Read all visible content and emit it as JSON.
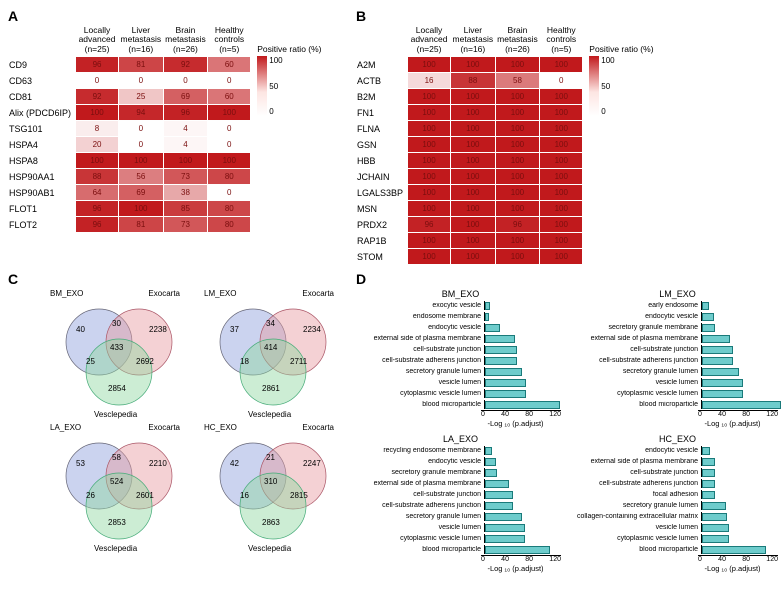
{
  "panels": {
    "A": "A",
    "B": "B",
    "C": "C",
    "D": "D"
  },
  "heatmap_common": {
    "columns": [
      {
        "line1": "Locally",
        "line2": "advanced",
        "line3": "(n=25)"
      },
      {
        "line1": "Liver",
        "line2": "metastasis",
        "line3": "(n=16)"
      },
      {
        "line1": "Brain",
        "line2": "metastasis",
        "line3": "(n=26)"
      },
      {
        "line1": "Healthy",
        "line2": "controls",
        "line3": "(n=5)"
      }
    ],
    "legend_title": "Positive ratio (%)",
    "legend_ticks": [
      "100",
      "50",
      "0"
    ],
    "color_min": "#ffffff",
    "color_max": "#c1191c"
  },
  "heatmapA": {
    "rows": [
      "CD9",
      "CD63",
      "CD81",
      "Alix (PDCD6IP)",
      "TSG101",
      "HSPA4",
      "HSPA8",
      "HSP90AA1",
      "HSP90AB1",
      "FLOT1",
      "FLOT2"
    ],
    "values": [
      [
        96,
        81,
        92,
        60
      ],
      [
        0,
        0,
        0,
        0
      ],
      [
        92,
        25,
        69,
        60
      ],
      [
        100,
        94,
        96,
        100
      ],
      [
        8,
        0,
        4,
        0
      ],
      [
        20,
        0,
        4,
        0
      ],
      [
        100,
        100,
        100,
        100
      ],
      [
        88,
        56,
        73,
        80
      ],
      [
        64,
        69,
        38,
        0
      ],
      [
        96,
        100,
        85,
        80
      ],
      [
        96,
        81,
        73,
        80
      ]
    ]
  },
  "heatmapB": {
    "rows": [
      "A2M",
      "ACTB",
      "B2M",
      "FN1",
      "FLNA",
      "GSN",
      "HBB",
      "JCHAIN",
      "LGALS3BP",
      "MSN",
      "PRDX2",
      "RAP1B",
      "STOM"
    ],
    "values": [
      [
        100,
        100,
        100,
        100
      ],
      [
        16,
        88,
        58,
        0
      ],
      [
        100,
        100,
        100,
        100
      ],
      [
        100,
        100,
        100,
        100
      ],
      [
        100,
        100,
        100,
        100
      ],
      [
        100,
        100,
        100,
        100
      ],
      [
        100,
        100,
        100,
        100
      ],
      [
        100,
        100,
        100,
        100
      ],
      [
        100,
        100,
        100,
        100
      ],
      [
        100,
        100,
        100,
        100
      ],
      [
        96,
        100,
        96,
        100
      ],
      [
        100,
        100,
        100,
        100
      ],
      [
        100,
        100,
        100,
        100
      ]
    ]
  },
  "venn_common": {
    "set_labels": [
      "",
      "Exocarta",
      "Vesclepedia"
    ],
    "circle_colors": {
      "A": "#8b9edc",
      "B": "#e79aa0",
      "C": "#8fd6a0"
    },
    "fill_opacity": 0.45
  },
  "venns": [
    {
      "title": "BM_EXO",
      "onlyA": 40,
      "onlyB": 2238,
      "onlyC": 2854,
      "AB": 30,
      "AC": 25,
      "BC": 2692,
      "ABC": 433
    },
    {
      "title": "LM_EXO",
      "onlyA": 37,
      "onlyB": 2234,
      "onlyC": 2861,
      "AB": 34,
      "AC": 18,
      "BC": 2711,
      "ABC": 414
    },
    {
      "title": "LA_EXO",
      "onlyA": 53,
      "onlyB": 2210,
      "onlyC": 2853,
      "AB": 58,
      "AC": 26,
      "BC": 2601,
      "ABC": 524
    },
    {
      "title": "HC_EXO",
      "onlyA": 42,
      "onlyB": 2247,
      "onlyC": 2863,
      "AB": 21,
      "AC": 16,
      "BC": 2815,
      "ABC": 310
    }
  ],
  "bars_common": {
    "xlabel": "-Log ₁₀ (p.adjust)",
    "xmax": 120,
    "xticks": [
      0,
      40,
      80,
      120
    ],
    "bar_color": "#6ecccc",
    "bar_border": "#1a7a7a"
  },
  "barcharts": [
    {
      "title": "BM_EXO",
      "items": [
        {
          "label": "exocytic vesicle",
          "v": 8
        },
        {
          "label": "endosome membrane",
          "v": 6
        },
        {
          "label": "endocytic vesicle",
          "v": 22
        },
        {
          "label": "external side of plasma membrane",
          "v": 45
        },
        {
          "label": "cell-substrate junction",
          "v": 48
        },
        {
          "label": "cell-substrate adherens junction",
          "v": 48
        },
        {
          "label": "secretory granule lumen",
          "v": 56
        },
        {
          "label": "vesicle lumen",
          "v": 62
        },
        {
          "label": "cytoplasmic vesicle lumen",
          "v": 62
        },
        {
          "label": "blood microparticle",
          "v": 112
        }
      ]
    },
    {
      "title": "LM_EXO",
      "items": [
        {
          "label": "early endosome",
          "v": 10
        },
        {
          "label": "endocytic vesicle",
          "v": 18
        },
        {
          "label": "secretory granule membrane",
          "v": 20
        },
        {
          "label": "external side of plasma membrane",
          "v": 42
        },
        {
          "label": "cell-substrate junction",
          "v": 46
        },
        {
          "label": "cell-substrate adherens junction",
          "v": 46
        },
        {
          "label": "secretory granule lumen",
          "v": 55
        },
        {
          "label": "vesicle lumen",
          "v": 62
        },
        {
          "label": "cytoplasmic vesicle lumen",
          "v": 62
        },
        {
          "label": "blood microparticle",
          "v": 118
        }
      ]
    },
    {
      "title": "LA_EXO",
      "items": [
        {
          "label": "recycling endosome membrane",
          "v": 10
        },
        {
          "label": "endocytic vesicle",
          "v": 16
        },
        {
          "label": "secretory granule membrane",
          "v": 18
        },
        {
          "label": "external side of plasma membrane",
          "v": 36
        },
        {
          "label": "cell-substrate junction",
          "v": 42
        },
        {
          "label": "cell-substrate adherens junction",
          "v": 42
        },
        {
          "label": "secretory granule lumen",
          "v": 56
        },
        {
          "label": "vesicle lumen",
          "v": 60
        },
        {
          "label": "cytoplasmic vesicle lumen",
          "v": 60
        },
        {
          "label": "blood microparticle",
          "v": 98
        }
      ]
    },
    {
      "title": "HC_EXO",
      "items": [
        {
          "label": "endocytic vesicle",
          "v": 12
        },
        {
          "label": "external side of plasma membrane",
          "v": 20
        },
        {
          "label": "cell-substrate junction",
          "v": 20
        },
        {
          "label": "cell-substrate adherens junction",
          "v": 20
        },
        {
          "label": "focal adhesion",
          "v": 20
        },
        {
          "label": "secretory granule lumen",
          "v": 36
        },
        {
          "label": "collagen-containing extracellular matrix",
          "v": 38
        },
        {
          "label": "vesicle lumen",
          "v": 40
        },
        {
          "label": "cytoplasmic vesicle lumen",
          "v": 40
        },
        {
          "label": "blood microparticle",
          "v": 96
        }
      ]
    }
  ]
}
